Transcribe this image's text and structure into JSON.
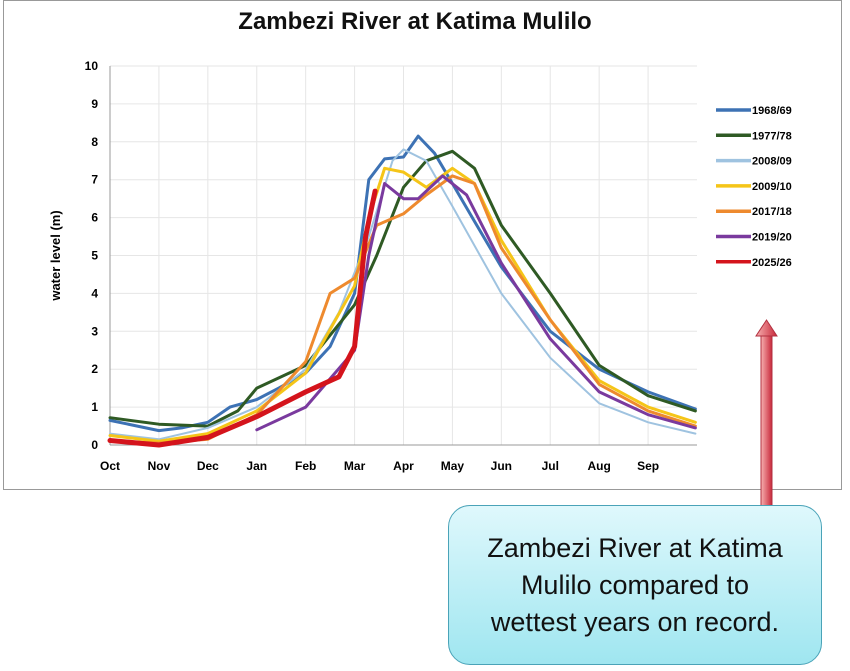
{
  "chart_data": {
    "type": "line",
    "title": "Zambezi River at Katima Mulilo",
    "ylabel": "water level (m)",
    "xlabel": "",
    "ylim": [
      0,
      10
    ],
    "yticks": [
      0,
      1,
      2,
      3,
      4,
      5,
      6,
      7,
      8,
      9,
      10
    ],
    "xticks": [
      "Oct",
      "Nov",
      "Dec",
      "Jan",
      "Feb",
      "Mar",
      "Apr",
      "May",
      "Jun",
      "Jul",
      "Aug",
      "Sep"
    ],
    "grid": true,
    "legend": "right",
    "series": [
      {
        "name": "1968/69",
        "color": "#3d72b4",
        "points": [
          [
            "Oct 1",
            0.65
          ],
          [
            "Nov 1",
            0.38
          ],
          [
            "Nov 15",
            0.45
          ],
          [
            "Dec 1",
            0.6
          ],
          [
            "Dec 15",
            1.0
          ],
          [
            "Jan 1",
            1.2
          ],
          [
            "Jan 15",
            1.5
          ],
          [
            "Feb 1",
            1.9
          ],
          [
            "Feb 15",
            2.6
          ],
          [
            "Mar 1",
            4.0
          ],
          [
            "Mar 10",
            7.0
          ],
          [
            "Mar 20",
            7.55
          ],
          [
            "Apr 1",
            7.6
          ],
          [
            "Apr 10",
            8.15
          ],
          [
            "Apr 20",
            7.7
          ],
          [
            "May 1",
            6.9
          ],
          [
            "May 15",
            5.9
          ],
          [
            "Jun 1",
            4.7
          ],
          [
            "Jul 1",
            3.0
          ],
          [
            "Aug 1",
            2.0
          ],
          [
            "Sep 1",
            1.4
          ],
          [
            "Sep 30",
            0.95
          ]
        ]
      },
      {
        "name": "1977/78",
        "color": "#2f5a24",
        "points": [
          [
            "Oct 1",
            0.72
          ],
          [
            "Nov 1",
            0.55
          ],
          [
            "Dec 1",
            0.5
          ],
          [
            "Dec 20",
            0.9
          ],
          [
            "Jan 1",
            1.5
          ],
          [
            "Feb 1",
            2.1
          ],
          [
            "Mar 1",
            3.7
          ],
          [
            "Mar 15",
            5.0
          ],
          [
            "Apr 1",
            6.8
          ],
          [
            "Apr 15",
            7.5
          ],
          [
            "May 1",
            7.75
          ],
          [
            "May 15",
            7.3
          ],
          [
            "Jun 1",
            5.8
          ],
          [
            "Jul 1",
            4.0
          ],
          [
            "Aug 1",
            2.1
          ],
          [
            "Sep 1",
            1.3
          ],
          [
            "Sep 30",
            0.9
          ]
        ]
      },
      {
        "name": "2008/09",
        "color": "#9fc3e0",
        "points": [
          [
            "Oct 1",
            0.3
          ],
          [
            "Nov 1",
            0.15
          ],
          [
            "Dec 1",
            0.45
          ],
          [
            "Jan 1",
            1.0
          ],
          [
            "Feb 1",
            2.0
          ],
          [
            "Feb 20",
            3.5
          ],
          [
            "Mar 10",
            5.5
          ],
          [
            "Mar 25",
            7.5
          ],
          [
            "Apr 1",
            7.8
          ],
          [
            "Apr 15",
            7.5
          ],
          [
            "May 1",
            6.3
          ],
          [
            "Jun 1",
            4.0
          ],
          [
            "Jul 1",
            2.3
          ],
          [
            "Aug 1",
            1.1
          ],
          [
            "Sep 1",
            0.6
          ],
          [
            "Sep 30",
            0.3
          ]
        ]
      },
      {
        "name": "2009/10",
        "color": "#f5c518",
        "points": [
          [
            "Oct 1",
            0.25
          ],
          [
            "Nov 1",
            0.1
          ],
          [
            "Dec 1",
            0.3
          ],
          [
            "Jan 1",
            0.9
          ],
          [
            "Feb 1",
            1.9
          ],
          [
            "Mar 1",
            4.2
          ],
          [
            "Mar 10",
            6.0
          ],
          [
            "Mar 20",
            7.3
          ],
          [
            "Apr 1",
            7.2
          ],
          [
            "Apr 15",
            6.8
          ],
          [
            "May 1",
            7.3
          ],
          [
            "May 15",
            6.9
          ],
          [
            "Jun 1",
            5.4
          ],
          [
            "Jul 1",
            3.3
          ],
          [
            "Aug 1",
            1.7
          ],
          [
            "Sep 1",
            1.0
          ],
          [
            "Sep 30",
            0.6
          ]
        ]
      },
      {
        "name": "2017/18",
        "color": "#ee8a2e",
        "points": [
          [
            "Oct 1",
            0.1
          ],
          [
            "Nov 1",
            0.05
          ],
          [
            "Dec 1",
            0.15
          ],
          [
            "Jan 1",
            0.8
          ],
          [
            "Feb 1",
            2.2
          ],
          [
            "Feb 15",
            4.0
          ],
          [
            "Mar 1",
            4.4
          ],
          [
            "Mar 15",
            5.8
          ],
          [
            "Apr 1",
            6.1
          ],
          [
            "Apr 15",
            6.6
          ],
          [
            "May 1",
            7.1
          ],
          [
            "May 15",
            6.9
          ],
          [
            "Jun 1",
            5.2
          ],
          [
            "Jul 1",
            3.3
          ],
          [
            "Aug 1",
            1.6
          ],
          [
            "Sep 1",
            0.9
          ],
          [
            "Sep 30",
            0.5
          ]
        ]
      },
      {
        "name": "2019/20",
        "color": "#7a3a9e",
        "points": [
          [
            "Jan 1",
            0.4
          ],
          [
            "Feb 1",
            1.0
          ],
          [
            "Mar 1",
            2.5
          ],
          [
            "Mar 10",
            5.0
          ],
          [
            "Mar 20",
            6.9
          ],
          [
            "Apr 1",
            6.5
          ],
          [
            "Apr 10",
            6.5
          ],
          [
            "Apr 25",
            7.1
          ],
          [
            "May 10",
            6.6
          ],
          [
            "Jun 1",
            4.8
          ],
          [
            "Jul 1",
            2.8
          ],
          [
            "Aug 1",
            1.4
          ],
          [
            "Sep 1",
            0.8
          ],
          [
            "Sep 30",
            0.45
          ]
        ]
      },
      {
        "name": "2025/26",
        "color": "#d4141c",
        "points": [
          [
            "Oct 1",
            0.12
          ],
          [
            "Nov 1",
            0.0
          ],
          [
            "Dec 1",
            0.2
          ],
          [
            "Jan 1",
            0.75
          ],
          [
            "Feb 1",
            1.4
          ],
          [
            "Feb 20",
            1.8
          ],
          [
            "Mar 1",
            2.6
          ],
          [
            "Mar 8",
            5.5
          ],
          [
            "Mar 14",
            6.7
          ]
        ]
      }
    ]
  },
  "callout": {
    "text": "Zambezi River at Katima Mulilo compared to wettest years on record."
  }
}
